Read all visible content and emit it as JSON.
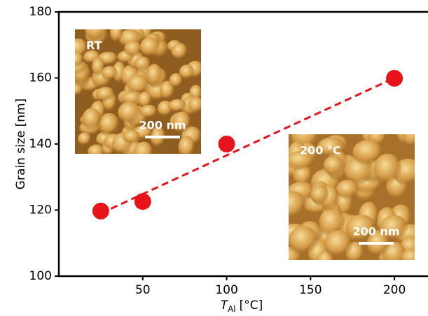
{
  "chart_data": {
    "type": "scatter",
    "x_label": {
      "symbol": "T",
      "subscript": "Al",
      "unit": "[°C]"
    },
    "y_label": "Grain size [nm]",
    "series": [
      {
        "color": "#e8141c",
        "x": [
          25,
          50,
          100,
          200
        ],
        "values": [
          119.7,
          122.6,
          140,
          159.9
        ]
      }
    ],
    "fit": {
      "color": "#e8141c",
      "x": [
        25,
        200
      ],
      "values": [
        119,
        160
      ]
    },
    "xlim": [
      0,
      220
    ],
    "xticks": [
      50,
      100,
      150,
      200
    ],
    "ylim": [
      100,
      180
    ],
    "yticks": [
      100,
      120,
      140,
      160,
      180
    ],
    "insets": [
      {
        "label": "RT",
        "scale_bar": "200 nm"
      },
      {
        "label": "200 °C",
        "scale_bar": "200 nm"
      }
    ]
  }
}
